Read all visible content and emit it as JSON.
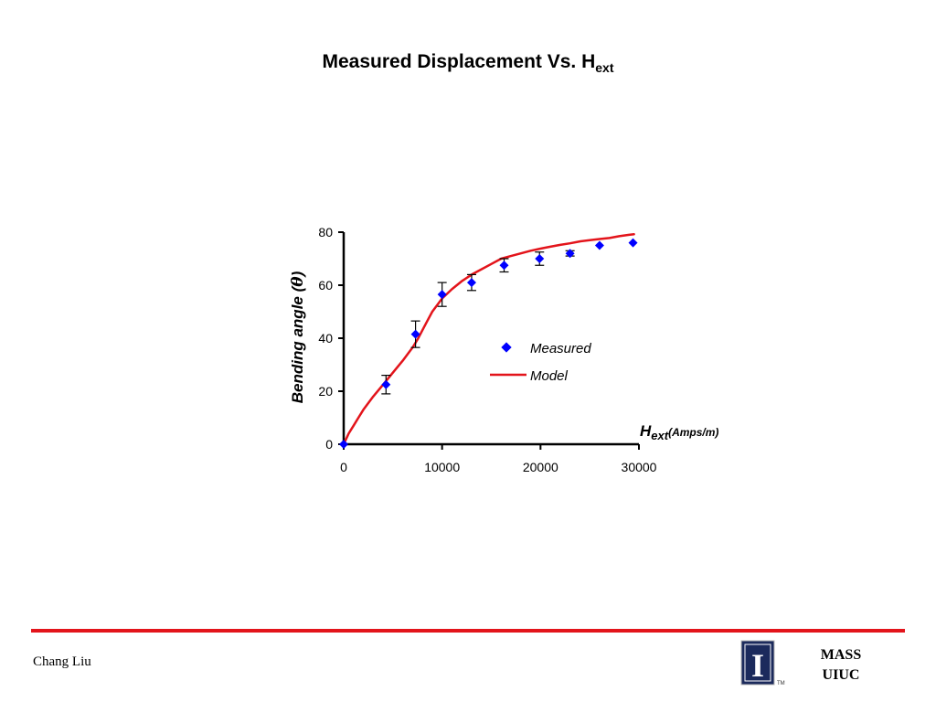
{
  "slide": {
    "title_main": "Measured Displacement Vs. H",
    "title_sub": "ext",
    "author": "Chang Liu",
    "org_line1": "MASS",
    "org_line2": "UIUC",
    "logo_text": "I",
    "trademark": "TM",
    "divider_color": "#e3141b"
  },
  "chart_data": {
    "type": "scatter",
    "title": "",
    "xlabel_main": "H",
    "xlabel_sub": "ext",
    "xlabel_units": "(Amps/m)",
    "ylabel_main": "Bending angle (",
    "ylabel_symbol": "θ",
    "ylabel_close": ")",
    "xlim": [
      0,
      30000
    ],
    "ylim": [
      0,
      80
    ],
    "xticks": [
      0,
      10000,
      20000,
      30000
    ],
    "yticks": [
      0,
      20,
      40,
      60,
      80
    ],
    "grid": false,
    "legend_position": "center-right",
    "series": [
      {
        "name": "Measured",
        "kind": "markers",
        "marker": "diamond",
        "color": "#0000ff",
        "x": [
          0,
          4300,
          7300,
          10000,
          13000,
          16300,
          19900,
          23000,
          26000,
          29400
        ],
        "y": [
          0,
          22.5,
          41.5,
          56.5,
          61,
          67.5,
          70,
          72,
          75,
          76
        ],
        "error": [
          0,
          3.5,
          5,
          4.5,
          3,
          2.5,
          2.5,
          1,
          0,
          0
        ]
      },
      {
        "name": "Model",
        "kind": "line",
        "color": "#e3141b",
        "x": [
          0,
          500,
          1000,
          1500,
          2000,
          3000,
          4000,
          5000,
          6000,
          7000,
          7500,
          8000,
          8500,
          9000,
          10000,
          11000,
          12000,
          13000,
          14000,
          15000,
          16000,
          17000,
          18000,
          19000,
          20000,
          21000,
          22000,
          23000,
          24000,
          25000,
          26000,
          27000,
          28000,
          29000,
          29500
        ],
        "y": [
          0,
          4,
          7,
          10,
          13,
          18,
          22.5,
          27,
          31.5,
          36.5,
          39.5,
          43,
          46.5,
          50,
          55,
          58.5,
          61.5,
          64,
          66,
          68,
          70,
          71,
          72,
          73,
          73.8,
          74.5,
          75.2,
          75.8,
          76.5,
          77,
          77.4,
          77.8,
          78.5,
          79,
          79.2
        ]
      }
    ]
  }
}
